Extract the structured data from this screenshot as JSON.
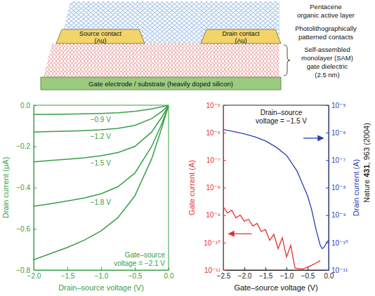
{
  "schematic": {
    "active_layer": [
      "Pentacene",
      "organic active layer"
    ],
    "contacts_label": [
      "Photolithographically",
      "patterned contacts"
    ],
    "dielectric_label": [
      "Self-assembled",
      "monolayer (SAM)",
      "gate dielectric",
      "(2.5 nm)"
    ],
    "source": [
      "Source contact",
      "(Au)"
    ],
    "drain": [
      "Drain contact",
      "(Au)"
    ],
    "gate": "Gate electrode / substrate (heavily doped silicon)"
  },
  "citation": {
    "journal": "Nature",
    "volume": "431",
    "pages": ", 963 (2004)"
  },
  "chart_data": [
    {
      "type": "line",
      "xlabel": "Drain–source voltage (V)",
      "ylabel": "Drain current (μA)",
      "xlim": [
        -2.0,
        0.0
      ],
      "ylim": [
        -0.8,
        0.0
      ],
      "xticks": [
        {
          "value": -2.0,
          "label": "−2.0"
        },
        {
          "value": -1.5,
          "label": "−1.5"
        },
        {
          "value": -1.0,
          "label": "−1.0"
        },
        {
          "value": -0.5,
          "label": "−0.5"
        },
        {
          "value": 0.0,
          "label": "0.0"
        }
      ],
      "yticks": [
        {
          "value": -0.8,
          "label": "−0.8"
        },
        {
          "value": -0.6,
          "label": "−0.6"
        },
        {
          "value": -0.4,
          "label": "−0.4"
        },
        {
          "value": -0.2,
          "label": "−0.2"
        },
        {
          "value": 0.0,
          "label": "0.0"
        }
      ],
      "x": [
        -2.0,
        -1.75,
        -1.5,
        -1.25,
        -1.0,
        -0.75,
        -0.5,
        -0.25,
        -0.1,
        0.0
      ],
      "series": [
        {
          "name": "−0.9 V",
          "color": "#35a047",
          "values": [
            -0.045,
            -0.044,
            -0.043,
            -0.042,
            -0.04,
            -0.037,
            -0.03,
            -0.018,
            -0.008,
            0.0
          ]
        },
        {
          "name": "−1.2 V",
          "color": "#35a047",
          "values": [
            -0.13,
            -0.128,
            -0.126,
            -0.123,
            -0.119,
            -0.112,
            -0.098,
            -0.065,
            -0.03,
            0.0
          ]
        },
        {
          "name": "−1.5 V",
          "color": "#35a047",
          "values": [
            -0.275,
            -0.268,
            -0.262,
            -0.255,
            -0.245,
            -0.23,
            -0.2,
            -0.13,
            -0.058,
            0.0
          ]
        },
        {
          "name": "−1.8 V",
          "color": "#35a047",
          "values": [
            -0.49,
            -0.478,
            -0.465,
            -0.45,
            -0.43,
            -0.395,
            -0.33,
            -0.2,
            -0.09,
            0.0
          ]
        },
        {
          "name": "Gate–source voltage = −2.1 V",
          "color": "#35a047",
          "values": [
            -0.75,
            -0.72,
            -0.69,
            -0.655,
            -0.61,
            -0.545,
            -0.44,
            -0.26,
            -0.11,
            0.0
          ]
        }
      ]
    },
    {
      "type": "line",
      "xlabel": "Gate–source voltage (V)",
      "ylabel": "Gate current (A)",
      "y2label": "Drain current (A)",
      "log": "y",
      "xlim": [
        -2.5,
        0.0
      ],
      "ylim": [
        1e-11,
        1e-05
      ],
      "y2lim": [
        1e-11,
        1e-05
      ],
      "xticks": [
        {
          "value": -2.5,
          "label": "−2.5"
        },
        {
          "value": -2.0,
          "label": "−2.0"
        },
        {
          "value": -1.5,
          "label": "−1.5"
        },
        {
          "value": -1.0,
          "label": "−1.0"
        },
        {
          "value": -0.5,
          "label": "−0.5"
        },
        {
          "value": 0.0,
          "label": "0.0"
        }
      ],
      "yticks": [
        {
          "value": 1e-11,
          "label": "10⁻¹¹"
        },
        {
          "value": 1e-10,
          "label": "10⁻¹⁰"
        },
        {
          "value": 1e-09,
          "label": "10⁻⁹"
        },
        {
          "value": 1e-08,
          "label": "10⁻⁸"
        },
        {
          "value": 1e-07,
          "label": "10⁻⁷"
        },
        {
          "value": 1e-06,
          "label": "10⁻⁶"
        },
        {
          "value": 1e-05,
          "label": "10⁻⁵"
        }
      ],
      "y2ticks": [
        {
          "value": 1e-11,
          "label": "10⁻¹¹"
        },
        {
          "value": 1e-10,
          "label": "10⁻¹⁰"
        },
        {
          "value": 1e-09,
          "label": "10⁻⁹"
        },
        {
          "value": 1e-08,
          "label": "10⁻⁸"
        },
        {
          "value": 1e-07,
          "label": "10⁻⁷"
        },
        {
          "value": 1e-06,
          "label": "10⁻⁶"
        },
        {
          "value": 1e-05,
          "label": "10⁻⁵"
        }
      ],
      "annotations": [
        "Drain–source voltage = −1.5 V"
      ],
      "series": [
        {
          "color": "#e8302a",
          "x": [
            -2.5,
            -2.4,
            -2.3,
            -2.2,
            -2.1,
            -2.0,
            -1.9,
            -1.8,
            -1.7,
            -1.6,
            -1.5,
            -1.4,
            -1.3,
            -1.2,
            -1.1,
            -1.0,
            -0.9,
            -0.8,
            -0.7,
            -0.6,
            -0.5,
            -0.4,
            -0.3,
            -0.2
          ],
          "values": [
            2e-09,
            1.2e-09,
            1.5e-09,
            8e-10,
            1e-09,
            6e-10,
            7e-10,
            4e-10,
            5e-10,
            2.5e-10,
            3e-10,
            1.2e-10,
            2e-10,
            6e-11,
            1.5e-10,
            3e-11,
            8e-11,
            1.2e-11,
            1.1e-11,
            1.1e-11,
            1.3e-11,
            1.5e-11,
            1.8e-11,
            2.2e-11
          ]
        },
        {
          "color": "#2b3fb0",
          "axis": "y2",
          "x": [
            -2.5,
            -2.25,
            -2.0,
            -1.75,
            -1.5,
            -1.25,
            -1.0,
            -0.75,
            -0.5,
            -0.4,
            -0.3,
            -0.2,
            -0.15,
            -0.1,
            -0.05,
            0.0
          ],
          "values": [
            1.3e-06,
            1.1e-06,
            9e-07,
            7e-07,
            5e-07,
            3e-07,
            1.5e-07,
            4e-08,
            5e-09,
            1.5e-09,
            3e-10,
            8e-11,
            6e-11,
            7e-11,
            1e-10,
            1.2e-10
          ]
        }
      ]
    }
  ]
}
